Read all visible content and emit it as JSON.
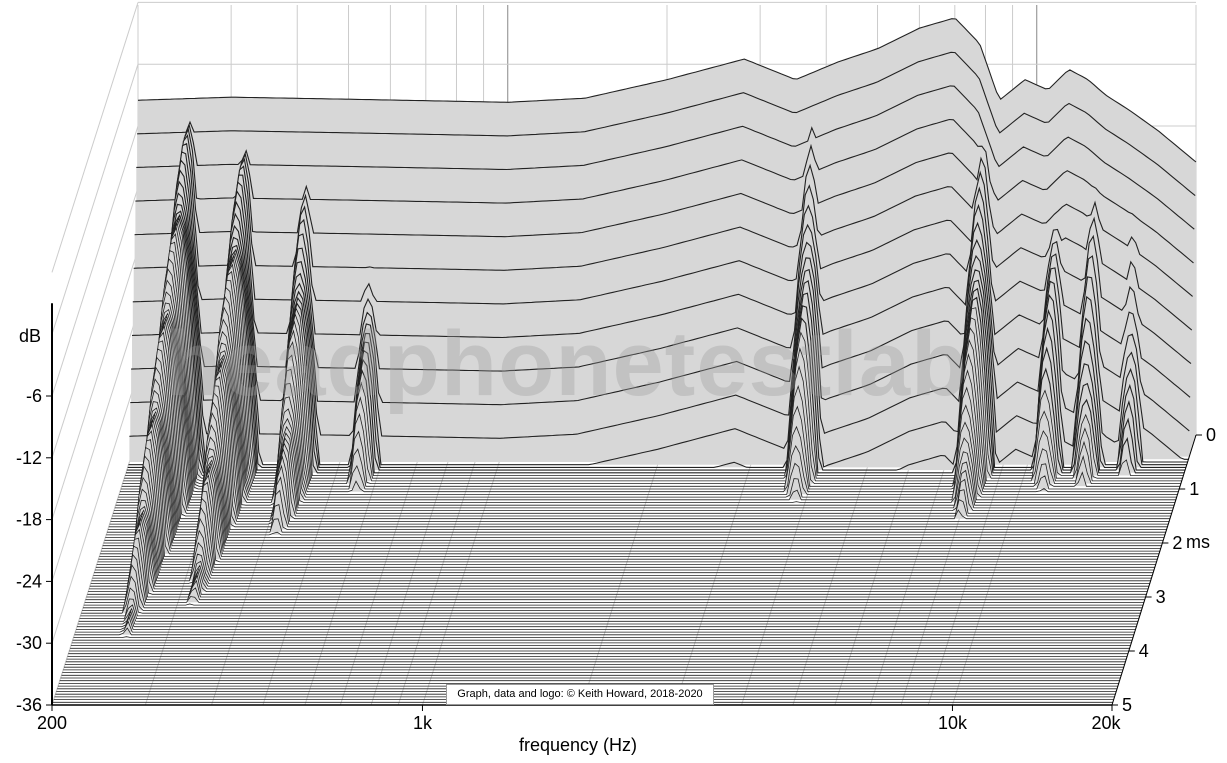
{
  "chart_data": {
    "type": "waterfall",
    "xlabel": "frequency (Hz)",
    "ylabel": "dB",
    "zlabel": "ms",
    "x_scale": "log",
    "xlim": [
      200,
      20000
    ],
    "ylim": [
      -36,
      0
    ],
    "zlim": [
      0,
      5
    ],
    "x_ticks": [
      {
        "value": 200,
        "label": "200"
      },
      {
        "value": 1000,
        "label": "1k"
      },
      {
        "value": 10000,
        "label": "10k"
      },
      {
        "value": 20000,
        "label": "20k"
      }
    ],
    "y_ticks": [
      {
        "value": -6,
        "label": "-6"
      },
      {
        "value": -12,
        "label": "-12"
      },
      {
        "value": -18,
        "label": "-18"
      },
      {
        "value": -24,
        "label": "-24"
      },
      {
        "value": -30,
        "label": "-30"
      },
      {
        "value": -36,
        "label": "-36"
      }
    ],
    "z_ticks": [
      {
        "value": 0,
        "label": "0"
      },
      {
        "value": 1,
        "label": "1"
      },
      {
        "value": 2,
        "label": "2"
      },
      {
        "value": 3,
        "label": "3"
      },
      {
        "value": 4,
        "label": "4"
      },
      {
        "value": 5,
        "label": "5"
      }
    ],
    "slice_count": 100,
    "base_response_db": [
      [
        200,
        -3.5
      ],
      [
        300,
        -3.2
      ],
      [
        500,
        -3.4
      ],
      [
        800,
        -3.6
      ],
      [
        1000,
        -3.7
      ],
      [
        1400,
        -3.3
      ],
      [
        2000,
        -1.5
      ],
      [
        2800,
        0.5
      ],
      [
        3500,
        -1.5
      ],
      [
        4200,
        0.2
      ],
      [
        5000,
        1.5
      ],
      [
        6000,
        3.5
      ],
      [
        7000,
        4.5
      ],
      [
        7800,
        2.0
      ],
      [
        8500,
        -3.5
      ],
      [
        9500,
        -1.5
      ],
      [
        10500,
        -2.5
      ],
      [
        11500,
        -0.5
      ],
      [
        12500,
        -1.5
      ],
      [
        13500,
        -3.0
      ],
      [
        15000,
        -4.5
      ],
      [
        17000,
        -6.5
      ],
      [
        20000,
        -9.5
      ]
    ],
    "resonances": [
      {
        "freq": 250,
        "initial_db": -4,
        "decay_ms": 3.8
      },
      {
        "freq": 320,
        "initial_db": -6,
        "decay_ms": 3.2
      },
      {
        "freq": 420,
        "initial_db": -9,
        "decay_ms": 2.0
      },
      {
        "freq": 560,
        "initial_db": -12,
        "decay_ms": 1.2
      },
      {
        "freq": 3800,
        "initial_db": -3,
        "decay_ms": 1.3
      },
      {
        "freq": 8000,
        "initial_db": -4,
        "decay_ms": 1.6
      },
      {
        "freq": 11000,
        "initial_db": -6,
        "decay_ms": 1.1
      },
      {
        "freq": 13000,
        "initial_db": -6,
        "decay_ms": 1.0
      },
      {
        "freq": 15500,
        "initial_db": -8,
        "decay_ms": 0.8
      }
    ],
    "colors": {
      "fill": "#d7d7d7",
      "line": "#222222",
      "grid": "#cccccc",
      "grid_major": "#888888"
    }
  },
  "watermark": "headphonetestlab",
  "copyright": "Graph, data and logo: © Keith Howard, 2018-2020"
}
